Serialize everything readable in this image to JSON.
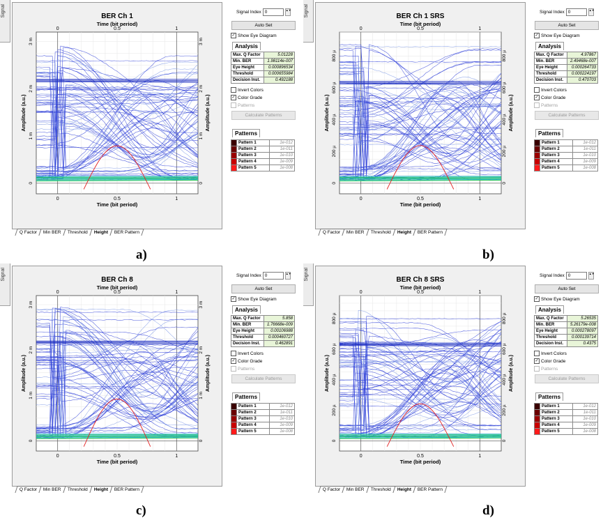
{
  "colors": {
    "trace": "#2f3fd8",
    "trace_light": "#7f9ae6",
    "threshold_line": "#1e2fc0",
    "base_green": "#21c44b",
    "base_cyan": "#2ab8d8",
    "eye_red": "#e32020",
    "analysis_value_bg": "#e8f5d8",
    "pattern_colors": [
      "#3a0000",
      "#6a0000",
      "#9a0000",
      "#c80000",
      "#ff1a1a"
    ]
  },
  "panels": [
    {
      "caption": "a)",
      "side_tab": "Signal",
      "chart": {
        "title": "BER Ch 1",
        "top_axis_label": "Time (bit period)",
        "top_ticks": [
          "0",
          "0.5",
          "1"
        ],
        "bottom_ticks": [
          "0",
          "0.5",
          "1"
        ],
        "bottom_axis_label": "Time (bit period)",
        "left_axis_label": "Amplitude (a.u.)",
        "right_axis_label": "Amplitude (a.u.)",
        "y_ticks": [
          "0",
          "1 m",
          "2 m",
          "3 m"
        ],
        "y_max": 3.2,
        "eye_peak": 0.92,
        "threshold": 2.2,
        "seed": 11
      },
      "bottom_tabs": [
        "Q Factor",
        "Min BER",
        "Threshold",
        "Height",
        "BER Pattern"
      ],
      "active_tab": "Height",
      "controls": {
        "signal_index_label": "Signal Index",
        "signal_index_value": "0",
        "auto_set": "Auto Set",
        "show_eye": "Show Eye Diagram",
        "analysis_title": "Analysis",
        "analysis": [
          {
            "k": "Max. Q Factor",
            "v": "5.01228"
          },
          {
            "k": "Min. BER",
            "v": "1.98114e-007"
          },
          {
            "k": "Eye Height",
            "v": "0.000896534"
          },
          {
            "k": "Threshold",
            "v": "0.000655984"
          },
          {
            "k": "Decision Inst.",
            "v": "0.492188"
          }
        ],
        "invert_colors": "Invert Colors",
        "color_grade": "Color Grade",
        "patterns_chk": "Patterns",
        "calc_patterns": "Calculate Patterns",
        "patterns_title": "Patterns",
        "patterns": [
          {
            "n": "Pattern 1",
            "v": "1e-012"
          },
          {
            "n": "Pattern 2",
            "v": "1e-011"
          },
          {
            "n": "Pattern 3",
            "v": "1e-010"
          },
          {
            "n": "Pattern 4",
            "v": "1e-009"
          },
          {
            "n": "Pattern 5",
            "v": "1e-008"
          }
        ]
      }
    },
    {
      "caption": "b)",
      "side_tab": "Signal",
      "chart": {
        "title": "BER Ch 1 SRS",
        "top_axis_label": "Time (bit period)",
        "top_ticks": [
          "0",
          "0.5",
          "1"
        ],
        "bottom_ticks": [
          "0",
          "0.5",
          "1"
        ],
        "bottom_axis_label": "Time (bit period)",
        "left_axis_label": "Amplitude (a.u.)",
        "right_axis_label": "Amplitude (a.u.)",
        "y_ticks": [
          "0",
          "200 µ",
          "400 µ",
          "600 µ",
          "800 µ"
        ],
        "y_max": 950,
        "eye_peak": 275,
        "threshold": 640,
        "seed": 23
      },
      "bottom_tabs": [
        "Q Factor",
        "Min BER",
        "Threshold",
        "Height",
        "BER Pattern"
      ],
      "active_tab": "Height",
      "controls": {
        "signal_index_label": "Signal Index",
        "signal_index_value": "0",
        "auto_set": "Auto Set",
        "show_eye": "Show Eye Diagram",
        "analysis_title": "Analysis",
        "analysis": [
          {
            "k": "Max. Q Factor",
            "v": "4.97867"
          },
          {
            "k": "Min. BER",
            "v": "2.49468e-007"
          },
          {
            "k": "Eye Height",
            "v": "0.000264733"
          },
          {
            "k": "Threshold",
            "v": "0.000224197"
          },
          {
            "k": "Decision Inst.",
            "v": "0.470703"
          }
        ],
        "invert_colors": "Invert Colors",
        "color_grade": "Color Grade",
        "patterns_chk": "Patterns",
        "calc_patterns": "Calculate Patterns",
        "patterns_title": "Patterns",
        "patterns": [
          {
            "n": "Pattern 1",
            "v": "1e-012"
          },
          {
            "n": "Pattern 2",
            "v": "1e-011"
          },
          {
            "n": "Pattern 3",
            "v": "1e-010"
          },
          {
            "n": "Pattern 4",
            "v": "1e-009"
          },
          {
            "n": "Pattern 5",
            "v": "1e-008"
          }
        ]
      }
    },
    {
      "caption": "c)",
      "side_tab": "Signal",
      "chart": {
        "title": "BER Ch 8",
        "top_axis_label": "Time (bit period)",
        "top_ticks": [
          "0",
          "0.5",
          "1"
        ],
        "bottom_ticks": [
          "0",
          "0.5",
          "1"
        ],
        "bottom_axis_label": "Time (bit period)",
        "left_axis_label": "Amplitude (a.u.)",
        "right_axis_label": "Amplitude (a.u.)",
        "y_ticks": [
          "0",
          "1 m",
          "2 m",
          "3 m"
        ],
        "y_max": 3.2,
        "eye_peak": 1.05,
        "threshold": 2.2,
        "seed": 37
      },
      "bottom_tabs": [
        "Q Factor",
        "Min BER",
        "Threshold",
        "Height",
        "BER Pattern"
      ],
      "active_tab": "Height",
      "controls": {
        "signal_index_label": "Signal Index",
        "signal_index_value": "0",
        "auto_set": "Auto Set",
        "show_eye": "Show Eye Diagram",
        "analysis_title": "Analysis",
        "analysis": [
          {
            "k": "Max. Q Factor",
            "v": "5.858"
          },
          {
            "k": "Min. BER",
            "v": "1.76668e-009"
          },
          {
            "k": "Eye Height",
            "v": "0.00106988"
          },
          {
            "k": "Threshold",
            "v": "0.000460727"
          },
          {
            "k": "Decision Inst.",
            "v": "0.462891"
          }
        ],
        "invert_colors": "Invert Colors",
        "color_grade": "Color Grade",
        "patterns_chk": "Patterns",
        "calc_patterns": "Calculate Patterns",
        "patterns_title": "Patterns",
        "patterns": [
          {
            "n": "Pattern 1",
            "v": "1e-012"
          },
          {
            "n": "Pattern 2",
            "v": "1e-011"
          },
          {
            "n": "Pattern 3",
            "v": "1e-010"
          },
          {
            "n": "Pattern 4",
            "v": "1e-009"
          },
          {
            "n": "Pattern 5",
            "v": "1e-008"
          }
        ]
      }
    },
    {
      "caption": "d)",
      "side_tab": "Signal",
      "chart": {
        "title": "BER Ch 8 SRS",
        "top_axis_label": "Time (bit period)",
        "top_ticks": [
          "0",
          "0.5",
          "1"
        ],
        "bottom_ticks": [
          "0",
          "0.5",
          "1"
        ],
        "bottom_axis_label": "Time (bit period)",
        "left_axis_label": "Amplitude (a.u.)",
        "right_axis_label": "Amplitude (a.u.)",
        "y_ticks": [
          "0",
          "200 µ",
          "400 µ",
          "600 µ",
          "800 µ"
        ],
        "y_max": 950,
        "eye_peak": 280,
        "threshold": 640,
        "seed": 53
      },
      "bottom_tabs": [
        "Q Factor",
        "Min BER",
        "Threshold",
        "Height",
        "BER Pattern"
      ],
      "active_tab": "Height",
      "controls": {
        "signal_index_label": "Signal Index",
        "signal_index_value": "0",
        "auto_set": "Auto Set",
        "show_eye": "Show Eye Diagram",
        "analysis_title": "Analysis",
        "analysis": [
          {
            "k": "Max. Q Factor",
            "v": "5.26535"
          },
          {
            "k": "Min. BER",
            "v": "5.26179e-008"
          },
          {
            "k": "Eye Height",
            "v": "0.000278097"
          },
          {
            "k": "Threshold",
            "v": "0.000139714"
          },
          {
            "k": "Decision Inst.",
            "v": "0.4375"
          }
        ],
        "invert_colors": "Invert Colors",
        "color_grade": "Color Grade",
        "patterns_chk": "Patterns",
        "calc_patterns": "Calculate Patterns",
        "patterns_title": "Patterns",
        "patterns": [
          {
            "n": "Pattern 1",
            "v": "1e-012"
          },
          {
            "n": "Pattern 2",
            "v": "1e-011"
          },
          {
            "n": "Pattern 3",
            "v": "1e-010"
          },
          {
            "n": "Pattern 4",
            "v": "1e-009"
          },
          {
            "n": "Pattern 5",
            "v": "1e-008"
          }
        ]
      }
    }
  ]
}
